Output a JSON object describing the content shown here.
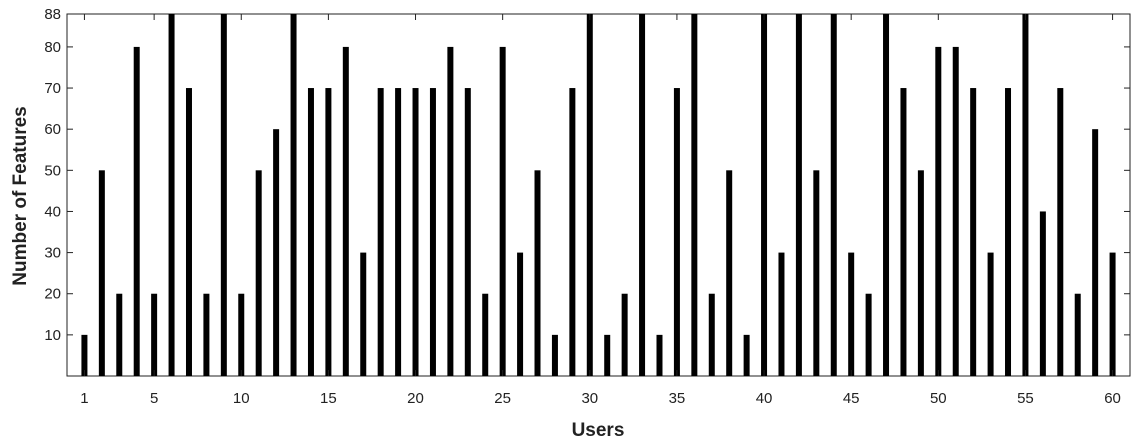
{
  "chart_data": {
    "type": "bar",
    "title": "",
    "xlabel": "Users",
    "ylabel": "Number of Features",
    "x": [
      1,
      2,
      3,
      4,
      5,
      6,
      7,
      8,
      9,
      10,
      11,
      12,
      13,
      14,
      15,
      16,
      17,
      18,
      19,
      20,
      21,
      22,
      23,
      24,
      25,
      26,
      27,
      28,
      29,
      30,
      31,
      32,
      33,
      34,
      35,
      36,
      37,
      38,
      39,
      40,
      41,
      42,
      43,
      44,
      45,
      46,
      47,
      48,
      49,
      50,
      51,
      52,
      53,
      54,
      55,
      56,
      57,
      58,
      59,
      60
    ],
    "values": [
      10,
      50,
      20,
      80,
      20,
      88,
      70,
      20,
      88,
      20,
      50,
      60,
      88,
      70,
      70,
      80,
      30,
      70,
      70,
      70,
      70,
      80,
      70,
      20,
      80,
      30,
      50,
      10,
      70,
      88,
      10,
      20,
      88,
      10,
      70,
      88,
      20,
      50,
      10,
      88,
      30,
      88,
      50,
      88,
      30,
      20,
      88,
      70,
      50,
      80,
      80,
      70,
      30,
      70,
      88,
      40,
      70,
      20,
      60,
      30
    ],
    "xlim": [
      0,
      61
    ],
    "ylim": [
      0,
      88
    ],
    "xticks": [
      1,
      5,
      10,
      15,
      20,
      25,
      30,
      35,
      40,
      45,
      50,
      55,
      60
    ],
    "yticks": [
      10,
      20,
      30,
      40,
      50,
      60,
      70,
      80,
      88
    ],
    "bar_color": "#000000",
    "axis_color": "#222222",
    "grid": false,
    "legend": "none"
  }
}
